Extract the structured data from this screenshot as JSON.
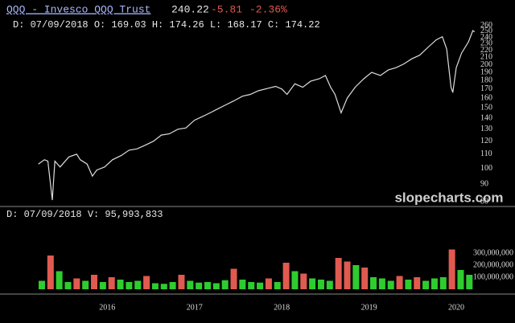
{
  "header": {
    "title": "QQQ - Invesco QQQ Trust",
    "last": "240.22",
    "change": "-5.81",
    "change_pct": "-2.36%",
    "info": "D: 07/09/2018 O: 169.03 H: 174.26 L: 168.17 C: 174.22",
    "watermark": "slopecharts.com"
  },
  "chart_data": [
    {
      "type": "line",
      "log_scale": true,
      "color": "#dddddd",
      "x": [
        2015.21,
        2015.28,
        2015.32,
        2015.37,
        2015.4,
        2015.46,
        2015.56,
        2015.65,
        2015.69,
        2015.77,
        2015.83,
        2015.88,
        2015.97,
        2016.06,
        2016.16,
        2016.25,
        2016.34,
        2016.44,
        2016.53,
        2016.62,
        2016.71,
        2016.81,
        2016.9,
        2017.0,
        2017.08,
        2017.18,
        2017.27,
        2017.36,
        2017.45,
        2017.55,
        2017.64,
        2017.73,
        2017.85,
        2017.93,
        2018.0,
        2018.06,
        2018.15,
        2018.24,
        2018.33,
        2018.43,
        2018.5,
        2018.56,
        2018.61,
        2018.68,
        2018.75,
        2018.84,
        2018.94,
        2019.03,
        2019.13,
        2019.22,
        2019.31,
        2019.4,
        2019.49,
        2019.58,
        2019.68,
        2019.77,
        2019.84,
        2019.89,
        2019.94,
        2019.96,
        2020.0,
        2020.06,
        2020.14,
        2020.19,
        2020.21
      ],
      "values": [
        103,
        106,
        105,
        81,
        105,
        101,
        108,
        110,
        106,
        103,
        95,
        99,
        101,
        106,
        109,
        113,
        114,
        117,
        120,
        125,
        126,
        130,
        131,
        138,
        141,
        145,
        149,
        153,
        157,
        162,
        164,
        168,
        171,
        173,
        170,
        164,
        176,
        172,
        179,
        182,
        186,
        172,
        164,
        145,
        160,
        172,
        182,
        190,
        186,
        193,
        196,
        201,
        208,
        213,
        225,
        236,
        241,
        222,
        172,
        166,
        196,
        216,
        233,
        251,
        249
      ],
      "xlim": [
        2014.9,
        2020.35
      ],
      "ylim": [
        78,
        265
      ],
      "yticks": [
        80,
        90,
        100,
        110,
        120,
        130,
        140,
        150,
        160,
        170,
        180,
        190,
        200,
        210,
        220,
        230,
        240,
        250,
        260
      ]
    },
    {
      "type": "bar",
      "info": "D: 07/09/2018  V:  95,993,833",
      "x": [
        2015.25,
        2015.35,
        2015.45,
        2015.55,
        2015.65,
        2015.75,
        2015.85,
        2015.95,
        2016.05,
        2016.15,
        2016.25,
        2016.35,
        2016.45,
        2016.55,
        2016.65,
        2016.75,
        2016.85,
        2016.95,
        2017.05,
        2017.15,
        2017.25,
        2017.35,
        2017.45,
        2017.55,
        2017.65,
        2017.75,
        2017.85,
        2017.95,
        2018.05,
        2018.15,
        2018.25,
        2018.35,
        2018.45,
        2018.55,
        2018.65,
        2018.75,
        2018.85,
        2018.95,
        2019.05,
        2019.15,
        2019.25,
        2019.35,
        2019.45,
        2019.55,
        2019.65,
        2019.75,
        2019.85,
        2019.95,
        2020.05,
        2020.15
      ],
      "values": [
        70000000,
        280000000,
        150000000,
        60000000,
        90000000,
        70000000,
        120000000,
        60000000,
        100000000,
        80000000,
        60000000,
        70000000,
        110000000,
        50000000,
        45000000,
        60000000,
        120000000,
        70000000,
        55000000,
        60000000,
        50000000,
        75000000,
        170000000,
        80000000,
        60000000,
        55000000,
        90000000,
        60000000,
        220000000,
        150000000,
        130000000,
        90000000,
        80000000,
        70000000,
        260000000,
        230000000,
        200000000,
        180000000,
        100000000,
        90000000,
        70000000,
        110000000,
        80000000,
        100000000,
        70000000,
        90000000,
        100000000,
        330000000,
        160000000,
        120000000
      ],
      "colors": [
        "#2ecc2e",
        "#e05a50",
        "#2ecc2e",
        "#2ecc2e",
        "#e05a50",
        "#2ecc2e",
        "#e05a50",
        "#2ecc2e",
        "#e05a50",
        "#2ecc2e",
        "#2ecc2e",
        "#2ecc2e",
        "#e05a50",
        "#2ecc2e",
        "#2ecc2e",
        "#2ecc2e",
        "#e05a50",
        "#2ecc2e",
        "#2ecc2e",
        "#2ecc2e",
        "#2ecc2e",
        "#2ecc2e",
        "#e05a50",
        "#2ecc2e",
        "#2ecc2e",
        "#2ecc2e",
        "#e05a50",
        "#2ecc2e",
        "#e05a50",
        "#2ecc2e",
        "#e05a50",
        "#2ecc2e",
        "#2ecc2e",
        "#2ecc2e",
        "#e05a50",
        "#e05a50",
        "#2ecc2e",
        "#e05a50",
        "#2ecc2e",
        "#2ecc2e",
        "#2ecc2e",
        "#e05a50",
        "#2ecc2e",
        "#e05a50",
        "#2ecc2e",
        "#2ecc2e",
        "#2ecc2e",
        "#e05a50",
        "#2ecc2e",
        "#2ecc2e"
      ],
      "xlim": [
        2014.9,
        2020.35
      ],
      "ylim": [
        0,
        400000000
      ],
      "xticks": [
        2016,
        2017,
        2018,
        2019,
        2020
      ],
      "yticks": [
        {
          "value": 100000000,
          "label": "100,000,000"
        },
        {
          "value": 200000000,
          "label": "200,000,000"
        },
        {
          "value": 300000000,
          "label": "300,000,000"
        }
      ]
    }
  ]
}
